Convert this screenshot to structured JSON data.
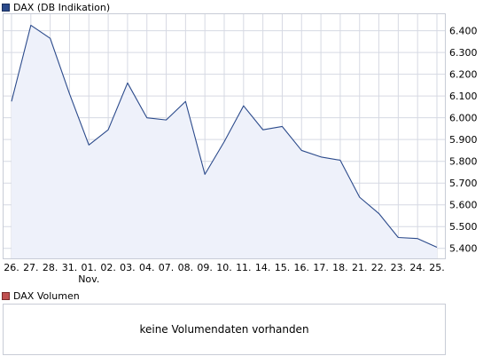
{
  "legend": {
    "price": {
      "label": "DAX (DB Indikation)",
      "color": "#2b4a8b"
    },
    "volume": {
      "label": "DAX Volumen",
      "color": "#c05050"
    }
  },
  "volume_panel": {
    "message": "keine Volumendaten vorhanden"
  },
  "chart_data": {
    "type": "area",
    "x": [
      "26.",
      "27.",
      "28.",
      "31.",
      "01.",
      "02.",
      "03.",
      "04.",
      "07.",
      "08.",
      "09.",
      "10.",
      "11.",
      "14.",
      "15.",
      "16.",
      "17.",
      "18.",
      "21.",
      "22.",
      "23.",
      "24.",
      "25."
    ],
    "month_labels": [
      {
        "index": 4,
        "label": "Nov."
      }
    ],
    "series": [
      {
        "values": [
          6075,
          6425,
          6365,
          6110,
          5875,
          5945,
          6160,
          6000,
          5990,
          6075,
          5740,
          5890,
          6055,
          5945,
          5960,
          5850,
          5820,
          5805,
          5635,
          5560,
          5450,
          5445,
          5405
        ]
      }
    ],
    "y_ticks": [
      "5.400",
      "5.500",
      "5.600",
      "5.700",
      "5.800",
      "5.900",
      "6.000",
      "6.100",
      "6.200",
      "6.300",
      "6.400"
    ],
    "ylim": [
      5350,
      6480
    ],
    "grid": true,
    "line_color": "#2b4a8b",
    "fill_color": "#eef1fa",
    "grid_color": "#d6d9e3"
  }
}
